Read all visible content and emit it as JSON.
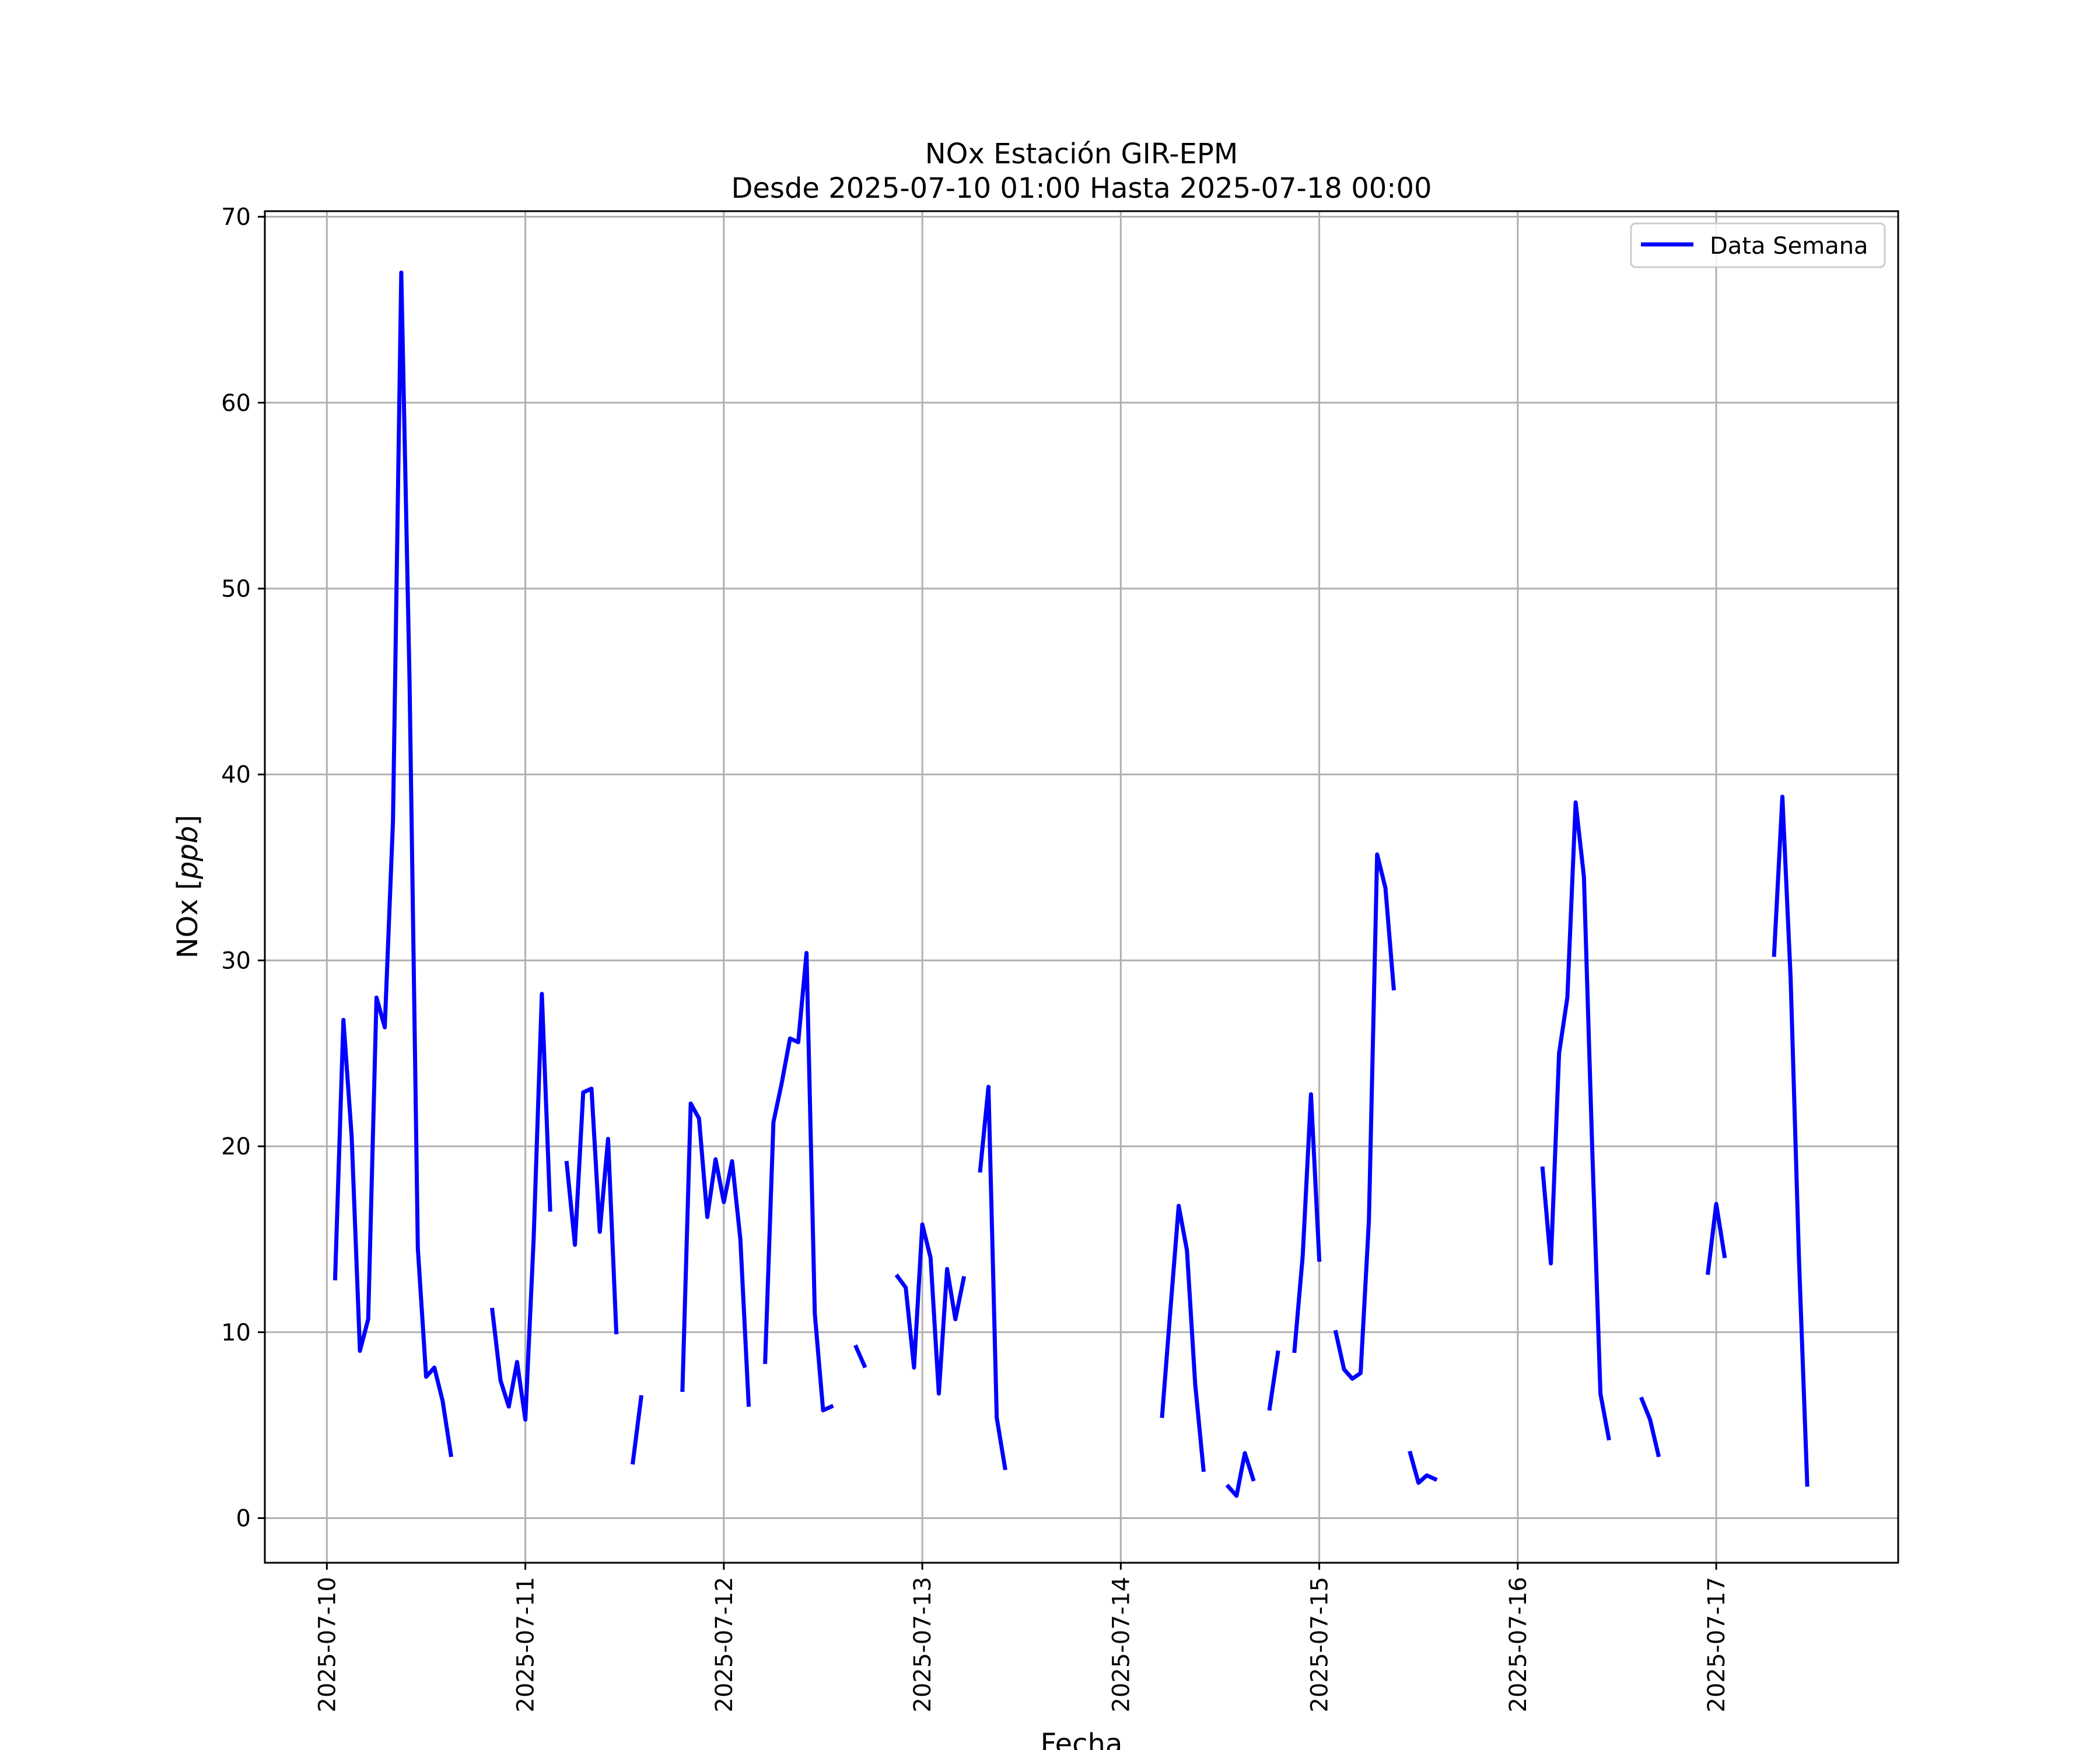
{
  "chart_data": {
    "type": "line",
    "title": "NOx Estación GIR-EPM",
    "subtitle": "Desde 2025-07-10 01:00 Hasta 2025-07-18 00:00",
    "xlabel": "Fecha",
    "ylabel": "NOx [ppb]",
    "ylabel_main": "NOx [",
    "ylabel_unit": "ppb",
    "ylabel_close": "]",
    "ylim": [
      -2.4,
      70.3
    ],
    "xlim_days": [
      "2025-07-09 16:30",
      "2025-07-17 22:00"
    ],
    "yticks": [
      "0",
      "10",
      "20",
      "30",
      "40",
      "50",
      "60",
      "70"
    ],
    "ytick_values": [
      0,
      10,
      20,
      30,
      40,
      50,
      60,
      70
    ],
    "xticks": [
      "2025-07-10",
      "2025-07-11",
      "2025-07-12",
      "2025-07-13",
      "2025-07-14",
      "2025-07-15",
      "2025-07-16",
      "2025-07-17"
    ],
    "grid": true,
    "legend": {
      "position": "upper right",
      "entries": [
        "Data Semana"
      ]
    },
    "colors": {
      "series": "#0000ff",
      "grid": "#b0b0b0"
    },
    "series": [
      {
        "name": "Data Semana",
        "segments": [
          [
            [
              "2025-07-10 01:00",
              12.9
            ],
            [
              "2025-07-10 02:00",
              26.8
            ],
            [
              "2025-07-10 03:00",
              20.5
            ],
            [
              "2025-07-10 04:00",
              9.0
            ],
            [
              "2025-07-10 05:00",
              10.7
            ],
            [
              "2025-07-10 06:00",
              28.0
            ],
            [
              "2025-07-10 07:00",
              26.4
            ],
            [
              "2025-07-10 08:00",
              37.5
            ],
            [
              "2025-07-10 09:00",
              67.0
            ],
            [
              "2025-07-10 10:00",
              45.0
            ],
            [
              "2025-07-10 11:00",
              14.5
            ],
            [
              "2025-07-10 12:00",
              7.6
            ],
            [
              "2025-07-10 13:00",
              8.1
            ],
            [
              "2025-07-10 14:00",
              6.3
            ],
            [
              "2025-07-10 15:00",
              3.4
            ]
          ],
          [
            [
              "2025-07-10 20:00",
              11.2
            ],
            [
              "2025-07-10 21:00",
              7.4
            ],
            [
              "2025-07-10 22:00",
              6.0
            ],
            [
              "2025-07-10 23:00",
              8.4
            ],
            [
              "2025-07-11 00:00",
              5.3
            ],
            [
              "2025-07-11 01:00",
              15.0
            ],
            [
              "2025-07-11 02:00",
              28.2
            ],
            [
              "2025-07-11 03:00",
              16.6
            ]
          ],
          [
            [
              "2025-07-11 05:00",
              19.1
            ],
            [
              "2025-07-11 06:00",
              14.7
            ],
            [
              "2025-07-11 07:00",
              22.9
            ],
            [
              "2025-07-11 08:00",
              23.1
            ],
            [
              "2025-07-11 09:00",
              15.4
            ],
            [
              "2025-07-11 10:00",
              20.4
            ],
            [
              "2025-07-11 11:00",
              10.0
            ]
          ],
          [
            [
              "2025-07-11 13:00",
              3.0
            ],
            [
              "2025-07-11 14:00",
              6.5
            ]
          ],
          [
            [
              "2025-07-11 19:00",
              6.9
            ],
            [
              "2025-07-11 20:00",
              22.3
            ],
            [
              "2025-07-11 21:00",
              21.5
            ],
            [
              "2025-07-11 22:00",
              16.2
            ],
            [
              "2025-07-11 23:00",
              19.3
            ],
            [
              "2025-07-12 00:00",
              17.0
            ],
            [
              "2025-07-12 01:00",
              19.2
            ],
            [
              "2025-07-12 02:00",
              15.0
            ],
            [
              "2025-07-12 03:00",
              6.1
            ]
          ],
          [
            [
              "2025-07-12 05:00",
              8.4
            ],
            [
              "2025-07-12 06:00",
              21.3
            ],
            [
              "2025-07-12 07:00",
              23.4
            ],
            [
              "2025-07-12 08:00",
              25.8
            ],
            [
              "2025-07-12 09:00",
              25.6
            ],
            [
              "2025-07-12 10:00",
              30.4
            ],
            [
              "2025-07-12 11:00",
              11.0
            ],
            [
              "2025-07-12 12:00",
              5.8
            ],
            [
              "2025-07-12 13:00",
              6.0
            ]
          ],
          [
            [
              "2025-07-12 16:00",
              9.2
            ],
            [
              "2025-07-12 17:00",
              8.2
            ]
          ],
          [
            [
              "2025-07-12 21:00",
              13.0
            ],
            [
              "2025-07-12 22:00",
              12.4
            ],
            [
              "2025-07-12 23:00",
              8.1
            ],
            [
              "2025-07-13 00:00",
              15.8
            ],
            [
              "2025-07-13 01:00",
              14.0
            ],
            [
              "2025-07-13 02:00",
              6.7
            ],
            [
              "2025-07-13 03:00",
              13.4
            ],
            [
              "2025-07-13 04:00",
              10.7
            ],
            [
              "2025-07-13 05:00",
              12.9
            ]
          ],
          [
            [
              "2025-07-13 07:00",
              18.7
            ],
            [
              "2025-07-13 08:00",
              23.2
            ],
            [
              "2025-07-13 09:00",
              5.4
            ],
            [
              "2025-07-13 10:00",
              2.7
            ]
          ],
          [
            [
              "2025-07-14 05:00",
              5.5
            ],
            [
              "2025-07-14 06:00",
              11.2
            ],
            [
              "2025-07-14 07:00",
              16.8
            ],
            [
              "2025-07-14 08:00",
              14.4
            ],
            [
              "2025-07-14 09:00",
              7.2
            ],
            [
              "2025-07-14 10:00",
              2.6
            ]
          ],
          [
            [
              "2025-07-14 13:00",
              1.7
            ],
            [
              "2025-07-14 14:00",
              1.2
            ],
            [
              "2025-07-14 15:00",
              3.5
            ],
            [
              "2025-07-14 16:00",
              2.1
            ]
          ],
          [
            [
              "2025-07-14 18:00",
              5.9
            ],
            [
              "2025-07-14 19:00",
              8.9
            ]
          ],
          [
            [
              "2025-07-14 21:00",
              9.0
            ],
            [
              "2025-07-14 22:00",
              14.1
            ],
            [
              "2025-07-14 23:00",
              22.8
            ],
            [
              "2025-07-15 00:00",
              13.9
            ]
          ],
          [
            [
              "2025-07-15 02:00",
              10.0
            ],
            [
              "2025-07-15 03:00",
              8.0
            ],
            [
              "2025-07-15 04:00",
              7.5
            ],
            [
              "2025-07-15 05:00",
              7.8
            ],
            [
              "2025-07-15 06:00",
              16.0
            ],
            [
              "2025-07-15 07:00",
              35.7
            ],
            [
              "2025-07-15 08:00",
              33.9
            ],
            [
              "2025-07-15 09:00",
              28.5
            ]
          ],
          [
            [
              "2025-07-15 11:00",
              3.5
            ],
            [
              "2025-07-15 12:00",
              1.9
            ],
            [
              "2025-07-15 13:00",
              2.3
            ],
            [
              "2025-07-15 14:00",
              2.1
            ]
          ],
          [
            [
              "2025-07-16 03:00",
              18.8
            ],
            [
              "2025-07-16 04:00",
              13.7
            ],
            [
              "2025-07-16 05:00",
              25.0
            ],
            [
              "2025-07-16 06:00",
              28.0
            ],
            [
              "2025-07-16 07:00",
              38.5
            ],
            [
              "2025-07-16 08:00",
              34.5
            ],
            [
              "2025-07-16 09:00",
              20.0
            ],
            [
              "2025-07-16 10:00",
              6.7
            ],
            [
              "2025-07-16 11:00",
              4.3
            ]
          ],
          [
            [
              "2025-07-16 15:00",
              6.4
            ],
            [
              "2025-07-16 16:00",
              5.3
            ],
            [
              "2025-07-16 17:00",
              3.4
            ]
          ],
          [
            [
              "2025-07-16 23:00",
              13.2
            ],
            [
              "2025-07-17 00:00",
              16.9
            ],
            [
              "2025-07-17 01:00",
              14.1
            ]
          ],
          [
            [
              "2025-07-17 07:00",
              30.3
            ],
            [
              "2025-07-17 08:00",
              38.8
            ],
            [
              "2025-07-17 09:00",
              29.0
            ],
            [
              "2025-07-17 10:00",
              14.0
            ],
            [
              "2025-07-17 11:00",
              1.8
            ]
          ]
        ]
      }
    ]
  }
}
